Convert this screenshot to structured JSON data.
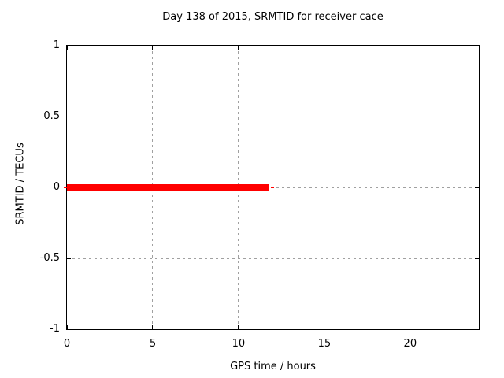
{
  "chart_data": {
    "type": "line",
    "title": "Day 138 of 2015, SRMTID for receiver cace",
    "xlabel": "GPS time / hours",
    "ylabel": "SRMTID / TECUs",
    "xlim": [
      0,
      24
    ],
    "ylim": [
      -1,
      1
    ],
    "xticks": [
      0,
      5,
      10,
      15,
      20
    ],
    "yticks": [
      -1,
      -0.5,
      0,
      0.5,
      1
    ],
    "grid": true,
    "legend": false,
    "background_color": "#ffffff",
    "grid_color": "#a0a0a0",
    "axis_color": "#000000",
    "series": [
      {
        "name": "SRMTID",
        "color": "#ff0000",
        "y_value": 0,
        "x_start": 0,
        "x_end": 11.8,
        "segments": [
          {
            "x1": -0.19,
            "x2": 0.0,
            "y": 0,
            "thickness_px": 2
          },
          {
            "x1": 0.0,
            "x2": 11.8,
            "y": 0,
            "thickness_px": 8
          },
          {
            "x1": 11.88,
            "x2": 12.06,
            "y": 0,
            "thickness_px": 2
          }
        ]
      }
    ]
  }
}
